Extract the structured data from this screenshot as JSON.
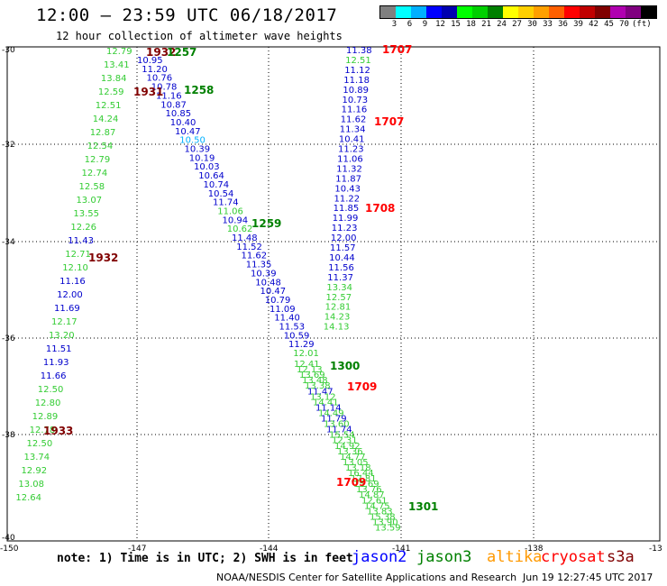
{
  "header": {
    "title": "12:00 – 23:59 UTC 06/18/2017",
    "subtitle": "12 hour collection of altimeter wave heights"
  },
  "legend": {
    "colors": [
      "#808080",
      "#00ffff",
      "#00b0ff",
      "#0000ff",
      "#0000b0",
      "#00ff00",
      "#00d000",
      "#008000",
      "#ffff00",
      "#ffd000",
      "#ffa000",
      "#ff6000",
      "#ff0000",
      "#c00000",
      "#800000",
      "#b000b0",
      "#800080",
      "#000000"
    ],
    "labels": [
      "3",
      "6",
      "9",
      "12",
      "15",
      "18",
      "21",
      "24",
      "27",
      "30",
      "33",
      "36",
      "39",
      "42",
      "45",
      "70",
      "(ft)"
    ]
  },
  "axes": {
    "lat_labels": [
      "-30",
      "-32",
      "-34",
      "-36",
      "-38",
      "-40"
    ],
    "lon_labels": [
      "-150",
      "-147",
      "-144",
      "-141",
      "-138",
      "-13"
    ]
  },
  "times": [
    {
      "text": "1932",
      "color": "#800000"
    },
    {
      "text": "1257",
      "color": "#008000"
    },
    {
      "text": "1931",
      "color": "#800000"
    },
    {
      "text": "1258",
      "color": "#008000"
    },
    {
      "text": "1259",
      "color": "#008000"
    },
    {
      "text": "1932",
      "color": "#800000"
    },
    {
      "text": "1933",
      "color": "#800000"
    },
    {
      "text": "1300",
      "color": "#008000"
    },
    {
      "text": "1707",
      "color": "#ff0000"
    },
    {
      "text": "1707",
      "color": "#ff0000"
    },
    {
      "text": "1708",
      "color": "#ff0000"
    },
    {
      "text": "1709",
      "color": "#ff0000"
    },
    {
      "text": "1709",
      "color": "#ff0000"
    },
    {
      "text": "1301",
      "color": "#008000"
    }
  ],
  "track_left_green": [
    "12.79",
    "13.41",
    "13.84",
    "12.59",
    "12.51",
    "14.24",
    "12.87",
    "12.54",
    "12.79",
    "12.74",
    "12.58",
    "13.07",
    "13.55",
    "12.26",
    "11.43",
    "12.71",
    "12.10",
    "11.16",
    "12.00",
    "11.69",
    "12.17",
    "13.20",
    "11.51",
    "11.93",
    "11.66",
    "12.50",
    "12.80",
    "12.89",
    "12.78",
    "12.50",
    "13.74",
    "12.92",
    "13.08",
    "12.64"
  ],
  "track_left_colors": [
    "g",
    "g",
    "g",
    "g",
    "g",
    "g",
    "g",
    "g",
    "g",
    "g",
    "g",
    "g",
    "g",
    "g",
    "b",
    "g",
    "g",
    "b",
    "b",
    "b",
    "g",
    "g",
    "b",
    "b",
    "b",
    "g",
    "g",
    "g",
    "g",
    "g",
    "g",
    "g",
    "g",
    "g"
  ],
  "track_mid": [
    "10.95",
    "11.20",
    "10.76",
    "10.78",
    "11.16",
    "10.87",
    "10.85",
    "10.40",
    "10.47",
    "10.50",
    "10.39",
    "10.19",
    "10.03",
    "10.64",
    "10.74",
    "10.54",
    "11.74",
    "11.06",
    "10.94",
    "10.62",
    "11.48",
    "11.52",
    "11.62",
    "11.35",
    "10.39",
    "10.48",
    "10.47",
    "10.79",
    "11.09",
    "11.40",
    "11.53",
    "10.59",
    "11.29",
    "12.01"
  ],
  "track_mid_colors": [
    "b",
    "b",
    "b",
    "b",
    "b",
    "b",
    "b",
    "b",
    "b",
    "c",
    "b",
    "b",
    "b",
    "b",
    "b",
    "b",
    "b",
    "g",
    "b",
    "g",
    "b",
    "b",
    "b",
    "b",
    "b",
    "b",
    "b",
    "b",
    "b",
    "b",
    "b",
    "b",
    "b",
    "g"
  ],
  "track_right_top": [
    "11.38",
    "12.51",
    "11.12",
    "11.18",
    "10.89",
    "10.73",
    "11.16",
    "11.62",
    "11.34",
    "10.41",
    "11.23",
    "11.06",
    "11.32",
    "11.87",
    "10.43",
    "11.22",
    "11.85",
    "11.99",
    "11.23",
    "12.00",
    "11.57",
    "10.44",
    "11.56",
    "11.37",
    "13.34",
    "12.57",
    "12.81",
    "14.23",
    "14.13"
  ],
  "track_right_top_colors": [
    "b",
    "g",
    "b",
    "b",
    "b",
    "b",
    "b",
    "b",
    "b",
    "b",
    "b",
    "b",
    "b",
    "b",
    "b",
    "b",
    "b",
    "b",
    "b",
    "b",
    "b",
    "b",
    "b",
    "b",
    "g",
    "g",
    "g",
    "g",
    "g"
  ],
  "track_lower": [
    "12.41",
    "12.13",
    "13.69",
    "13.48",
    "13.38",
    "11.47",
    "13.12",
    "14.41",
    "11.14",
    "14.49",
    "11.79",
    "13.60",
    "11.74",
    "15.54",
    "12.31",
    "14.92",
    "13.36",
    "14.77",
    "13.05",
    "13.18",
    "16.44",
    "12.81",
    "15.69",
    "13.76",
    "14.87",
    "12.61",
    "14.75",
    "13.83",
    "15.38",
    "13.90",
    "13.59"
  ],
  "track_lower_colors": [
    "g",
    "g",
    "g",
    "g",
    "g",
    "b",
    "g",
    "g",
    "b",
    "g",
    "b",
    "g",
    "b",
    "g",
    "g",
    "g",
    "g",
    "g",
    "g",
    "g",
    "g",
    "g",
    "g",
    "g",
    "g",
    "g",
    "g",
    "g",
    "g",
    "g",
    "g"
  ],
  "footer": {
    "note": "note: 1) Time is in UTC; 2) SWH is in feet",
    "satellites": [
      {
        "name": "jason2",
        "color": "#0000ff"
      },
      {
        "name": "jason3",
        "color": "#008000"
      },
      {
        "name": "altika",
        "color": "#ff9900"
      },
      {
        "name": "cryosat",
        "color": "#ff0000"
      },
      {
        "name": "s3a",
        "color": "#800000"
      }
    ],
    "credit": "NOAA/NESDIS Center for Satellite Applications and Research",
    "timestamp": "Jun 19 12:27:45 UTC 2017"
  }
}
